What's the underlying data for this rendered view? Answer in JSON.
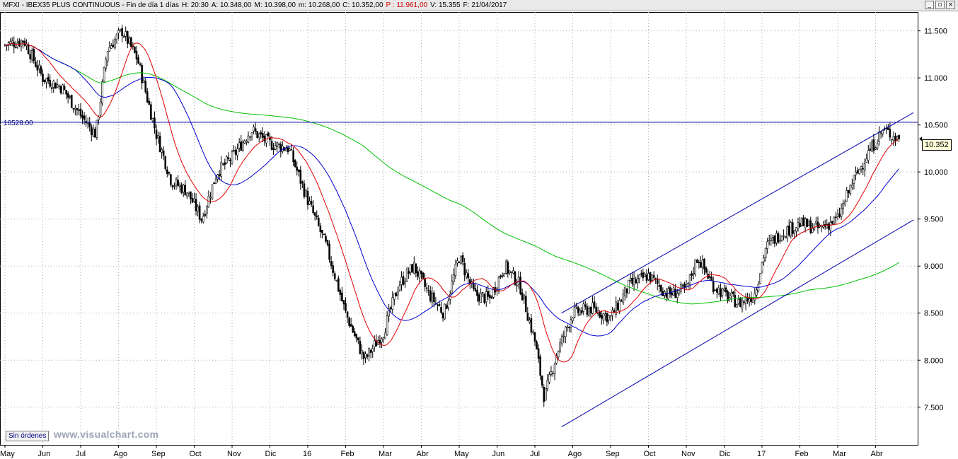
{
  "window": {
    "title_segments": [
      {
        "key": "instrument",
        "text": "MFXI - IBEX35 PLUS CONTINUOUS - Fin de día 1 días"
      },
      {
        "key": "hour",
        "text": "H: 20:30"
      },
      {
        "key": "open",
        "text": "A: 10.348,00"
      },
      {
        "key": "high",
        "text": "M: 10.398,00"
      },
      {
        "key": "low",
        "text": "m: 10.268,00"
      },
      {
        "key": "close",
        "text": "C: 10.352,00"
      },
      {
        "key": "prev",
        "text": "P : 11.961,00",
        "highlight": true
      },
      {
        "key": "volume",
        "text": "V: 15.355"
      },
      {
        "key": "date",
        "text": "F: 21/04/2017"
      }
    ],
    "buttons": {
      "minimize": "_",
      "restore": "▫",
      "close": "×"
    }
  },
  "overlay": {
    "orders_button": "Sin órdenes",
    "watermark": "www.visualchart.com",
    "horizontal_line_label": "10528.00",
    "last_price_tag": "10.352"
  },
  "colors": {
    "candle": "#000000",
    "ma_fast": "#e00000",
    "ma_mid": "#0000cc",
    "ma_slow": "#00c000",
    "trend_lines": "#0000aa",
    "grid": "#b0b0b0"
  },
  "chart_data": {
    "type": "candlestick",
    "title": "MFXI - IBEX35 PLUS CONTINUOUS",
    "x_range": [
      "2015-05",
      "2017-04"
    ],
    "month_labels": [
      "May",
      "Jun",
      "Jul",
      "Ago",
      "Sep",
      "Oct",
      "Nov",
      "Dic",
      "16",
      "Feb",
      "Mar",
      "Abr",
      "May",
      "Jun",
      "Jul",
      "Ago",
      "Sep",
      "Oct",
      "Nov",
      "Dic",
      "17",
      "Feb",
      "Mar",
      "Abr"
    ],
    "y_ticks": [
      "7.500",
      "8.000",
      "8.500",
      "9.000",
      "9.500",
      "10.000",
      "10.500",
      "11.000",
      "11.500"
    ],
    "y_tick_values": [
      7500,
      8000,
      8500,
      9000,
      9500,
      10000,
      10500,
      11000,
      11500
    ],
    "ylim": [
      7100,
      11700
    ],
    "grid": true,
    "price_path_monthly": [
      {
        "m": 0,
        "close": 11350
      },
      {
        "m": 0.5,
        "close": 11400
      },
      {
        "m": 1,
        "close": 11000
      },
      {
        "m": 1.5,
        "close": 10900
      },
      {
        "m": 2,
        "close": 10600
      },
      {
        "m": 2.4,
        "close": 10400
      },
      {
        "m": 2.7,
        "close": 11300
      },
      {
        "m": 3.1,
        "close": 11500
      },
      {
        "m": 3.5,
        "close": 11200
      },
      {
        "m": 4.0,
        "close": 10400
      },
      {
        "m": 4.4,
        "close": 9900
      },
      {
        "m": 4.8,
        "close": 9800
      },
      {
        "m": 5.2,
        "close": 9500
      },
      {
        "m": 5.6,
        "close": 10000
      },
      {
        "m": 6.0,
        "close": 10150
      },
      {
        "m": 6.5,
        "close": 10450
      },
      {
        "m": 7.0,
        "close": 10300
      },
      {
        "m": 7.5,
        "close": 10250
      },
      {
        "m": 8.0,
        "close": 9700
      },
      {
        "m": 8.5,
        "close": 9200
      },
      {
        "m": 9.0,
        "close": 8500
      },
      {
        "m": 9.5,
        "close": 8000
      },
      {
        "m": 10.0,
        "close": 8300
      },
      {
        "m": 10.4,
        "close": 8800
      },
      {
        "m": 10.8,
        "close": 9000
      },
      {
        "m": 11.2,
        "close": 8700
      },
      {
        "m": 11.6,
        "close": 8500
      },
      {
        "m": 12.0,
        "close": 9100
      },
      {
        "m": 12.4,
        "close": 8700
      },
      {
        "m": 12.8,
        "close": 8650
      },
      {
        "m": 13.2,
        "close": 9000
      },
      {
        "m": 13.6,
        "close": 8800
      },
      {
        "m": 14.0,
        "close": 8200
      },
      {
        "m": 14.25,
        "close": 7600
      },
      {
        "m": 14.6,
        "close": 8100
      },
      {
        "m": 15.0,
        "close": 8500
      },
      {
        "m": 15.5,
        "close": 8550
      },
      {
        "m": 16.0,
        "close": 8450
      },
      {
        "m": 16.5,
        "close": 8800
      },
      {
        "m": 17.0,
        "close": 8900
      },
      {
        "m": 17.5,
        "close": 8700
      },
      {
        "m": 18.0,
        "close": 8750
      },
      {
        "m": 18.3,
        "close": 9100
      },
      {
        "m": 18.7,
        "close": 8800
      },
      {
        "m": 19.0,
        "close": 8700
      },
      {
        "m": 19.4,
        "close": 8600
      },
      {
        "m": 19.8,
        "close": 8700
      },
      {
        "m": 20.1,
        "close": 9200
      },
      {
        "m": 20.5,
        "close": 9350
      },
      {
        "m": 21.0,
        "close": 9450
      },
      {
        "m": 21.5,
        "close": 9400
      },
      {
        "m": 22.0,
        "close": 9500
      },
      {
        "m": 22.4,
        "close": 9900
      },
      {
        "m": 22.8,
        "close": 10200
      },
      {
        "m": 23.2,
        "close": 10450
      },
      {
        "m": 23.6,
        "close": 10352
      }
    ],
    "horizontal_line": 10528,
    "trend_channel": {
      "upper": [
        {
          "m": 14.7,
          "price": 8500
        },
        {
          "m": 24.0,
          "price": 10630
        }
      ],
      "lower": [
        {
          "m": 14.7,
          "price": 7290
        },
        {
          "m": 24.0,
          "price": 9490
        }
      ]
    },
    "moving_averages": [
      {
        "name": "fast",
        "period_hint": "short"
      },
      {
        "name": "mid",
        "period_hint": "medium"
      },
      {
        "name": "slow",
        "period_hint": "long"
      }
    ],
    "last_close": 10352
  }
}
